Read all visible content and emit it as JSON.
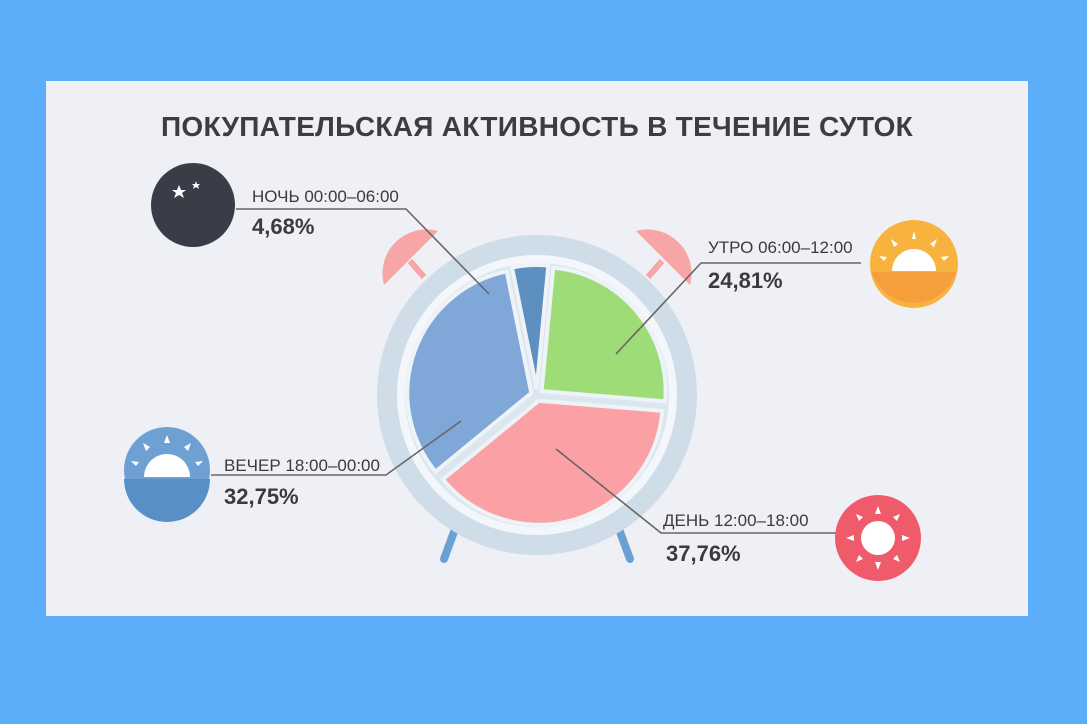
{
  "colors": {
    "background": "#5caefb",
    "card": "#eef0f5",
    "night": "#5e8fc1",
    "morning": "#9edc78",
    "day": "#fba0a4",
    "evening": "#7fa8d8",
    "clock_ring": "#cfdde8",
    "bells": "#f7a5a6",
    "feet": "#6aa0d3",
    "leader": "#666666"
  },
  "icons": [
    "moon-stars-icon",
    "sunrise-icon",
    "sun-icon",
    "sunset-icon"
  ],
  "chart_data": {
    "type": "pie",
    "title": "ПОКУПАТЕЛЬСКАЯ АКТИВНОСТЬ В ТЕЧЕНИЕ СУТОК",
    "slices": [
      {
        "label": "НОЧЬ 00:00–06:00",
        "value": 4.68,
        "display": "4,68%",
        "color": "#5e8fc1",
        "icon": "moon-stars-icon"
      },
      {
        "label": "УТРО 06:00–12:00",
        "value": 24.81,
        "display": "24,81%",
        "color": "#9edc78",
        "icon": "sunrise-icon"
      },
      {
        "label": "ДЕНЬ 12:00–18:00",
        "value": 37.76,
        "display": "37,76%",
        "color": "#fba0a4",
        "icon": "sun-icon"
      },
      {
        "label": "ВЕЧЕР 18:00–00:00",
        "value": 32.75,
        "display": "32,75%",
        "color": "#7fa8d8",
        "icon": "sunset-icon"
      }
    ]
  }
}
